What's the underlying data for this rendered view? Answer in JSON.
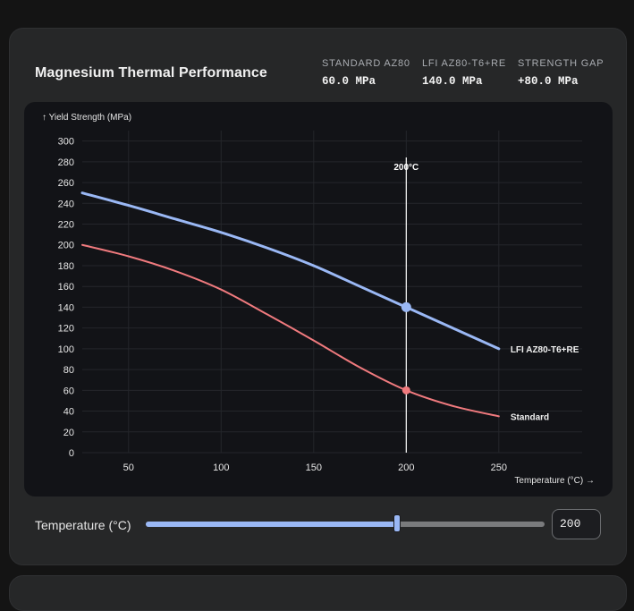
{
  "header": {
    "title": "Magnesium Thermal Performance",
    "stats": [
      {
        "label": "STANDARD AZ80",
        "value": "60.0 MPa"
      },
      {
        "label": "LFI AZ80-T6+RE",
        "value": "140.0 MPa"
      },
      {
        "label": "STRENGTH GAP",
        "value": "+80.0 MPa"
      }
    ]
  },
  "controls": {
    "temperature_label": "Temperature (°C)",
    "temperature_value": "200",
    "slider": {
      "min": 30,
      "max": 300,
      "value": 200
    }
  },
  "colors": {
    "lfi": "#9ab8f5",
    "standard": "#f07a7e",
    "marker": "#ffffff"
  },
  "chart_data": {
    "type": "line",
    "title": "",
    "ylabel": "↑ Yield Strength (MPa)",
    "xlabel": "Temperature (°C) →",
    "xlim": [
      25,
      295
    ],
    "ylim": [
      0,
      310
    ],
    "x_ticks": [
      50,
      100,
      150,
      200,
      250
    ],
    "y_ticks": [
      0,
      20,
      40,
      60,
      80,
      100,
      120,
      140,
      160,
      180,
      200,
      220,
      240,
      260,
      280,
      300
    ],
    "grid": true,
    "x": [
      25,
      50,
      75,
      100,
      125,
      150,
      175,
      200,
      225,
      250
    ],
    "series": [
      {
        "name": "LFI AZ80-T6+RE",
        "values": [
          250,
          238,
          225,
          212,
          197,
          180,
          160,
          140,
          120,
          100
        ]
      },
      {
        "name": "Standard",
        "values": [
          200,
          189,
          175,
          157,
          133,
          108,
          82,
          60,
          45,
          35
        ]
      }
    ],
    "marker": {
      "x": 200,
      "label": "200°C",
      "points": [
        {
          "series": "LFI AZ80-T6+RE",
          "y": 140
        },
        {
          "series": "Standard",
          "y": 60
        }
      ]
    }
  }
}
